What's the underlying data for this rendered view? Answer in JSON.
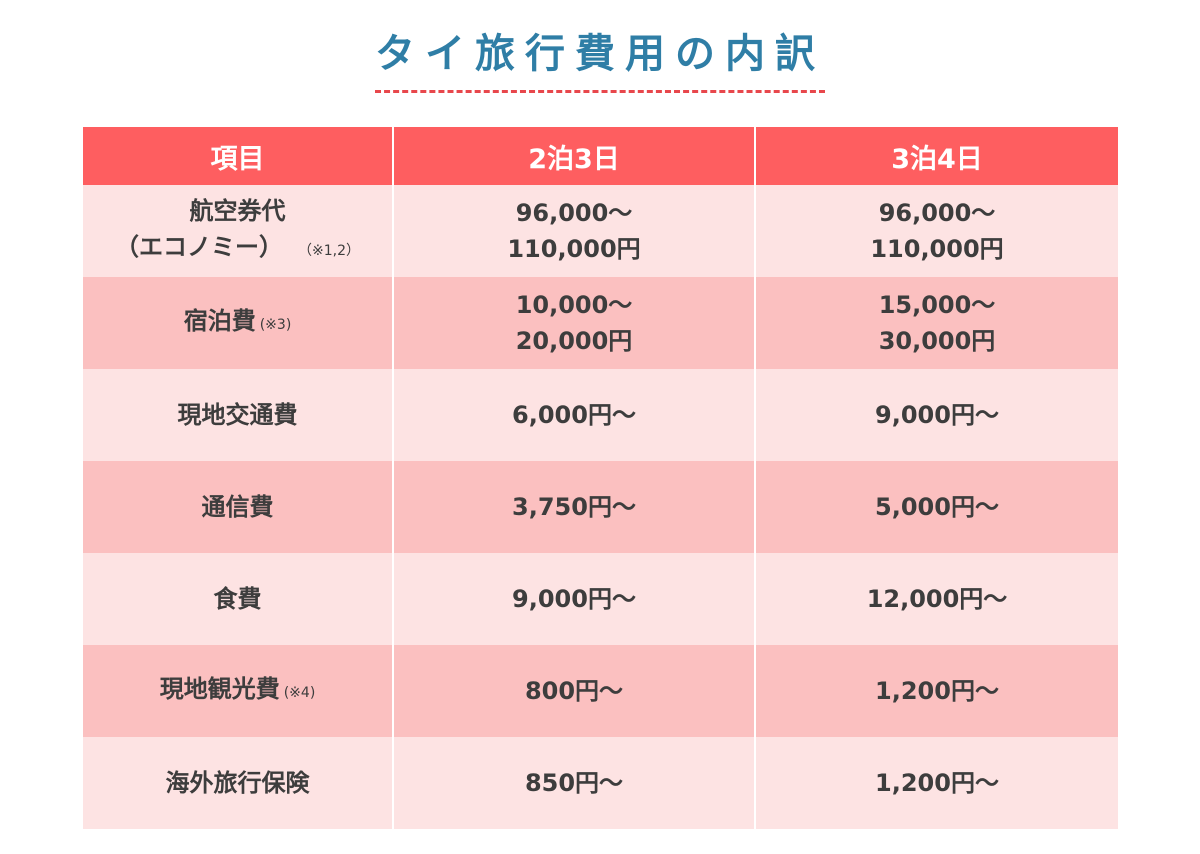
{
  "title": "タイ旅行費用の内訳",
  "table": {
    "headers": [
      "項目",
      "2泊3日",
      "3泊4日"
    ],
    "rows": [
      {
        "item_line1": "航空券代",
        "item_line2": "（エコノミー）",
        "note": "（※1,2）",
        "two_night_line1": "96,000〜",
        "two_night_line2": "110,000円",
        "three_night_line1": "96,000〜",
        "three_night_line2": "110,000円"
      },
      {
        "item": "宿泊費",
        "note": "(※3)",
        "two_night_line1": "10,000〜",
        "two_night_line2": "20,000円",
        "three_night_line1": "15,000〜",
        "three_night_line2": "30,000円"
      },
      {
        "item": "現地交通費",
        "two_night": "6,000円〜",
        "three_night": "9,000円〜"
      },
      {
        "item": "通信費",
        "two_night": "3,750円〜",
        "three_night": "5,000円〜"
      },
      {
        "item": "食費",
        "two_night": "9,000円〜",
        "three_night": "12,000円〜"
      },
      {
        "item": "現地観光費",
        "note": "(※4)",
        "two_night": "800円〜",
        "three_night": "1,200円〜"
      },
      {
        "item": "海外旅行保険",
        "two_night": "850円〜",
        "three_night": "1,200円〜"
      }
    ]
  },
  "colors": {
    "title": "#2f7ea6",
    "underline": "#e8474c",
    "header_bg": "#fe5e60",
    "row_light": "#fde3e3",
    "row_dark": "#fbc0c0"
  }
}
